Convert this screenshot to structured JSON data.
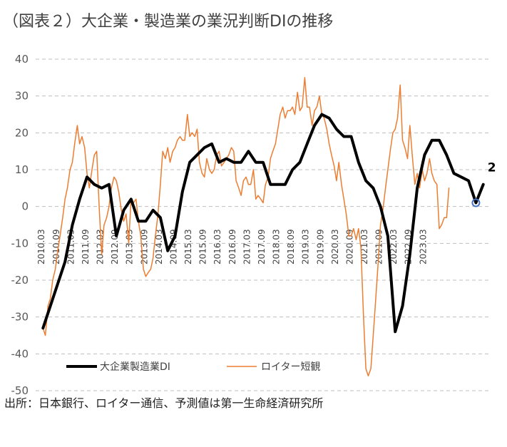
{
  "title": "（図表２）大企業・製造業の業況判断DIの推移",
  "source": "出所：日本銀行、ロイター通信、予測値は第一生命経済研究所",
  "chart_data": {
    "type": "line",
    "title": "（図表２）大企業・製造業の業況判断DIの推移",
    "ylim": [
      -50,
      40
    ],
    "yticks": [
      40,
      30,
      20,
      10,
      0,
      -10,
      -20,
      -30,
      -40,
      -50
    ],
    "xtick_labels": [
      "2010.03",
      "2010.09",
      "2011.03",
      "2011.09",
      "2012.03",
      "2012.09",
      "2013.03",
      "2013.09",
      "2014.03",
      "2014.09",
      "2015.03",
      "2015.09",
      "2016.03",
      "2016.09",
      "2017.03",
      "2017.09",
      "2018.03",
      "2018.09",
      "2019.03",
      "2019.09",
      "2020.03",
      "2020.09",
      "2021.03",
      "2021.09",
      "2022.03",
      "2022.09",
      "2023.03"
    ],
    "x_range": [
      "2010.03",
      "2023.12"
    ],
    "grid": "horizontal dashed",
    "legend_position": "bottom-left",
    "end_annotation": "2",
    "series": [
      {
        "name": "大企業製造業DI",
        "color": "#000000",
        "points": [
          [
            2010.25,
            -33
          ],
          [
            2010.5,
            -27
          ],
          [
            2010.75,
            -21
          ],
          [
            2011.0,
            -15
          ],
          [
            2011.25,
            -5
          ],
          [
            2011.5,
            2
          ],
          [
            2011.75,
            8
          ],
          [
            2012.0,
            6
          ],
          [
            2012.25,
            5
          ],
          [
            2012.5,
            6
          ],
          [
            2012.75,
            -8
          ],
          [
            2013.0,
            -1
          ],
          [
            2013.25,
            2
          ],
          [
            2013.5,
            -4
          ],
          [
            2013.75,
            -4
          ],
          [
            2014.0,
            -1
          ],
          [
            2014.25,
            -3
          ],
          [
            2014.5,
            -12
          ],
          [
            2014.75,
            -8
          ],
          [
            2015.0,
            4
          ],
          [
            2015.25,
            12
          ],
          [
            2015.5,
            14
          ],
          [
            2015.75,
            16
          ],
          [
            2016.0,
            17
          ],
          [
            2016.25,
            12
          ],
          [
            2016.5,
            13
          ],
          [
            2016.75,
            12
          ],
          [
            2017.0,
            12
          ],
          [
            2017.25,
            15
          ],
          [
            2017.5,
            12
          ],
          [
            2017.75,
            12
          ],
          [
            2018.0,
            6
          ],
          [
            2018.25,
            6
          ],
          [
            2018.5,
            6
          ],
          [
            2018.75,
            10
          ],
          [
            2019.0,
            12
          ],
          [
            2019.25,
            17
          ],
          [
            2019.5,
            22
          ],
          [
            2019.75,
            25
          ],
          [
            2020.0,
            24
          ],
          [
            2020.25,
            21
          ],
          [
            2020.5,
            19
          ],
          [
            2020.75,
            19
          ],
          [
            2021.0,
            12
          ],
          [
            2021.25,
            7
          ],
          [
            2021.5,
            5
          ],
          [
            2021.75,
            0
          ],
          [
            2022.0,
            -8
          ],
          [
            2022.25,
            -34
          ],
          [
            2022.5,
            -27
          ],
          [
            2022.75,
            -13
          ],
          [
            2023.0,
            5
          ],
          [
            2023.25,
            14
          ],
          [
            2023.5,
            18
          ],
          [
            2023.75,
            18
          ],
          [
            2024.0,
            14
          ],
          [
            2024.25,
            9
          ],
          [
            2024.5,
            8
          ],
          [
            2024.75,
            7
          ],
          [
            2025.0,
            1
          ],
          [
            2025.25,
            6
          ]
        ]
      },
      {
        "name": "ロイター短観",
        "color": "#ED7D31",
        "points": [
          [
            2010.25,
            -33
          ],
          [
            2010.33,
            -35
          ],
          [
            2010.42,
            -27
          ],
          [
            2010.5,
            -25
          ],
          [
            2010.58,
            -20
          ],
          [
            2010.67,
            -17
          ],
          [
            2010.75,
            -12
          ],
          [
            2010.83,
            -8
          ],
          [
            2010.92,
            -3
          ],
          [
            2011.0,
            2
          ],
          [
            2011.08,
            5
          ],
          [
            2011.17,
            10
          ],
          [
            2011.25,
            12
          ],
          [
            2011.33,
            17
          ],
          [
            2011.42,
            22
          ],
          [
            2011.5,
            17
          ],
          [
            2011.58,
            19
          ],
          [
            2011.67,
            16
          ],
          [
            2011.75,
            9
          ],
          [
            2011.83,
            5
          ],
          [
            2011.92,
            10
          ],
          [
            2012.0,
            14
          ],
          [
            2012.08,
            15
          ],
          [
            2012.17,
            -1
          ],
          [
            2012.25,
            -13
          ],
          [
            2012.33,
            -5
          ],
          [
            2012.42,
            -3
          ],
          [
            2012.5,
            0
          ],
          [
            2012.58,
            5
          ],
          [
            2012.67,
            8
          ],
          [
            2012.75,
            7
          ],
          [
            2012.83,
            4
          ],
          [
            2012.92,
            -1
          ],
          [
            2013.0,
            -4
          ],
          [
            2013.08,
            -2
          ],
          [
            2013.17,
            -10
          ],
          [
            2013.25,
            2
          ],
          [
            2013.33,
            1
          ],
          [
            2013.42,
            2
          ],
          [
            2013.5,
            -4
          ],
          [
            2013.58,
            -8
          ],
          [
            2013.67,
            -17
          ],
          [
            2013.75,
            -19
          ],
          [
            2013.83,
            -18
          ],
          [
            2013.92,
            -17
          ],
          [
            2014.0,
            -14
          ],
          [
            2014.08,
            -8
          ],
          [
            2014.17,
            -2
          ],
          [
            2014.25,
            6
          ],
          [
            2014.33,
            15
          ],
          [
            2014.42,
            13
          ],
          [
            2014.5,
            16
          ],
          [
            2014.58,
            12
          ],
          [
            2014.67,
            15
          ],
          [
            2014.75,
            16
          ],
          [
            2014.83,
            18
          ],
          [
            2014.92,
            19
          ],
          [
            2015.0,
            18
          ],
          [
            2015.08,
            18
          ],
          [
            2015.17,
            25
          ],
          [
            2015.25,
            19
          ],
          [
            2015.33,
            20
          ],
          [
            2015.42,
            19
          ],
          [
            2015.5,
            21
          ],
          [
            2015.58,
            12
          ],
          [
            2015.67,
            9
          ],
          [
            2015.75,
            8
          ],
          [
            2015.83,
            13
          ],
          [
            2015.92,
            10
          ],
          [
            2016.0,
            9
          ],
          [
            2016.08,
            10
          ],
          [
            2016.17,
            14
          ],
          [
            2016.25,
            15
          ],
          [
            2016.33,
            11
          ],
          [
            2016.42,
            12
          ],
          [
            2016.5,
            13
          ],
          [
            2016.58,
            14
          ],
          [
            2016.67,
            16
          ],
          [
            2016.75,
            15
          ],
          [
            2016.83,
            7
          ],
          [
            2016.92,
            5
          ],
          [
            2017.0,
            3
          ],
          [
            2017.08,
            7
          ],
          [
            2017.17,
            8
          ],
          [
            2017.25,
            6
          ],
          [
            2017.33,
            6
          ],
          [
            2017.42,
            10
          ],
          [
            2017.5,
            2
          ],
          [
            2017.58,
            3
          ],
          [
            2017.67,
            2
          ],
          [
            2017.75,
            1
          ],
          [
            2017.83,
            6
          ],
          [
            2017.92,
            8
          ],
          [
            2018.0,
            13
          ],
          [
            2018.08,
            15
          ],
          [
            2018.17,
            17
          ],
          [
            2018.25,
            21
          ],
          [
            2018.33,
            25
          ],
          [
            2018.42,
            27
          ],
          [
            2018.5,
            24
          ],
          [
            2018.58,
            26
          ],
          [
            2018.67,
            26
          ],
          [
            2018.75,
            27
          ],
          [
            2018.83,
            25
          ],
          [
            2018.92,
            31
          ],
          [
            2019.0,
            26
          ],
          [
            2019.08,
            27
          ],
          [
            2019.17,
            35
          ],
          [
            2019.25,
            27
          ],
          [
            2019.33,
            27
          ],
          [
            2019.42,
            22
          ],
          [
            2019.5,
            26
          ],
          [
            2019.58,
            27
          ],
          [
            2019.67,
            30
          ],
          [
            2019.75,
            25
          ],
          [
            2019.83,
            24
          ],
          [
            2019.92,
            21
          ],
          [
            2020.0,
            17
          ],
          [
            2020.08,
            14
          ],
          [
            2020.17,
            11
          ],
          [
            2020.25,
            7
          ],
          [
            2020.33,
            12
          ],
          [
            2020.42,
            6
          ],
          [
            2020.5,
            2
          ],
          [
            2020.58,
            -2
          ],
          [
            2020.67,
            -8
          ],
          [
            2020.75,
            -8
          ],
          [
            2020.83,
            -6
          ],
          [
            2020.92,
            -9
          ],
          [
            2021.0,
            -6
          ],
          [
            2021.08,
            -11
          ],
          [
            2021.17,
            -30
          ],
          [
            2021.25,
            -44
          ],
          [
            2021.33,
            -46
          ],
          [
            2021.42,
            -44
          ],
          [
            2021.5,
            -35
          ],
          [
            2021.58,
            -26
          ],
          [
            2021.67,
            -15
          ],
          [
            2021.75,
            -5
          ],
          [
            2021.83,
            -1
          ],
          [
            2021.92,
            5
          ],
          [
            2022.0,
            10
          ],
          [
            2022.08,
            15
          ],
          [
            2022.17,
            20
          ],
          [
            2022.25,
            21
          ],
          [
            2022.33,
            24
          ],
          [
            2022.42,
            33
          ],
          [
            2022.5,
            18
          ],
          [
            2022.58,
            16
          ],
          [
            2022.67,
            13
          ],
          [
            2022.75,
            22
          ],
          [
            2022.83,
            14
          ],
          [
            2022.92,
            6
          ],
          [
            2023.0,
            9
          ],
          [
            2023.08,
            5
          ],
          [
            2023.17,
            10
          ],
          [
            2023.25,
            7
          ],
          [
            2023.33,
            9
          ],
          [
            2023.42,
            13
          ],
          [
            2023.5,
            9
          ],
          [
            2023.58,
            7
          ],
          [
            2023.67,
            6
          ],
          [
            2023.75,
            -6
          ],
          [
            2023.83,
            -5
          ],
          [
            2023.92,
            -3
          ],
          [
            2024.0,
            -3
          ],
          [
            2024.08,
            5
          ]
        ]
      }
    ]
  }
}
